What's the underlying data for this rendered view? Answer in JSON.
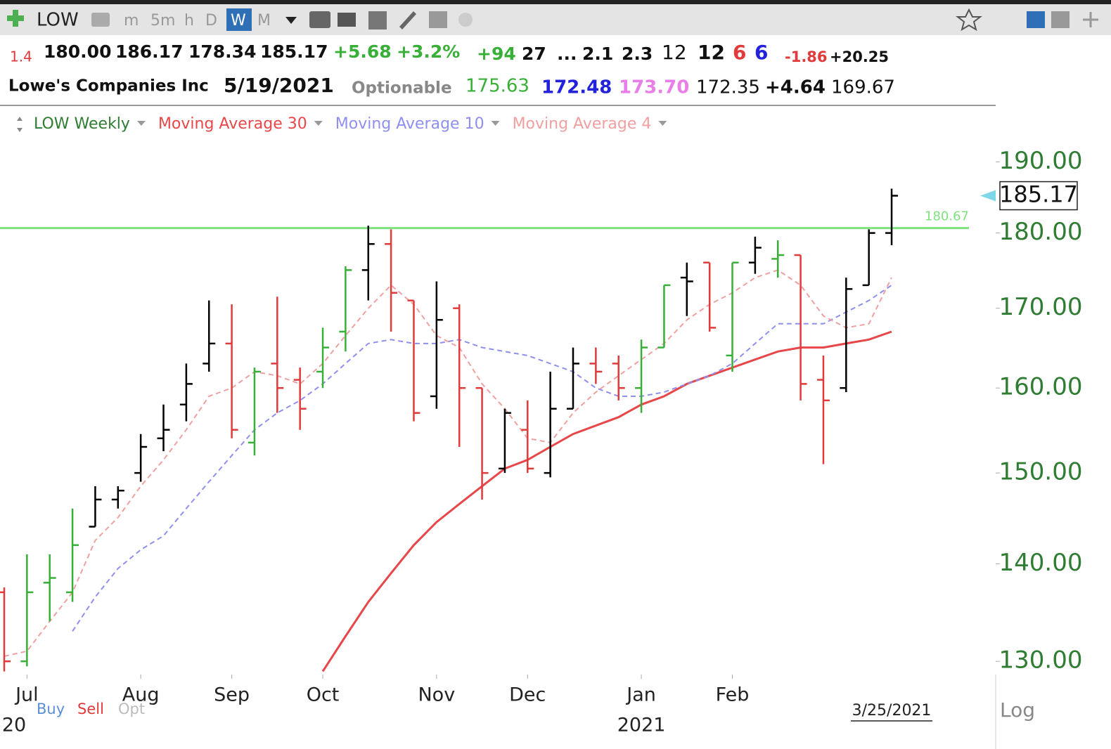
{
  "header": {
    "symbol": "LOW",
    "timeframes": [
      "m",
      "5m",
      "h",
      "D",
      "W",
      "M"
    ],
    "quote": [
      "1.4",
      "180.00",
      "186.17",
      "178.34",
      "185.17",
      "+5.68",
      "+3.2%",
      "+94",
      "27",
      "...",
      "2.1",
      "2.3",
      "12",
      "12",
      "6",
      "6",
      "-1.86",
      "+20.25"
    ],
    "info": [
      "Lowe's Companies Inc",
      "5/19/2021",
      "Optionable",
      "175.63",
      "172.48",
      "173.70",
      "172.35",
      "+4.64",
      "169.67"
    ]
  },
  "chart_data": {
    "type": "ohlc",
    "log": true,
    "ylim": [
      128.7,
      193.1
    ],
    "yticks": [
      {
        "value": 130,
        "label": "130.00"
      },
      {
        "value": 140,
        "label": "140.00"
      },
      {
        "value": 150,
        "label": "150.00"
      },
      {
        "value": 160,
        "label": "160.00"
      },
      {
        "value": 170,
        "label": "170.00"
      },
      {
        "value": 180,
        "label": "180.00"
      },
      {
        "value": 190,
        "label": "190.00"
      }
    ],
    "xticks": [
      {
        "value": 1,
        "label": "Jul"
      },
      {
        "value": 6,
        "label": "Aug"
      },
      {
        "value": 10,
        "label": "Sep"
      },
      {
        "value": 14,
        "label": "Oct"
      },
      {
        "value": 19,
        "label": "Nov"
      },
      {
        "value": 23,
        "label": "Dec"
      },
      {
        "value": 28,
        "label": "Jan"
      },
      {
        "value": 32,
        "label": "Feb"
      }
    ],
    "year_labels": [
      {
        "value": 0,
        "label": "20"
      },
      {
        "value": 28,
        "label": "2021"
      }
    ],
    "cursor": {
      "value": 39,
      "label": "3/25/2021"
    },
    "hline": {
      "value": 180.67,
      "label": "180.67",
      "color": "#7ee37e"
    },
    "last_price": {
      "value": 185.17,
      "label": "185.17"
    },
    "series": [
      {
        "name": "LOW Weekly",
        "color": "#2e7d32",
        "open": [
          137,
          130,
          138,
          137,
          144,
          147,
          150,
          154,
          158,
          163,
          165.5,
          153.5,
          163,
          161,
          162,
          167,
          175,
          178.5,
          171,
          159,
          170,
          160,
          150.5,
          155,
          150,
          157.5,
          163,
          163,
          160,
          165,
          174,
          176,
          164,
          176,
          176.5,
          177,
          161,
          160,
          173,
          180.0
        ],
        "high": [
          137.5,
          141,
          141,
          146,
          148.5,
          148.5,
          154.5,
          158,
          163,
          171,
          170.5,
          162.5,
          171.5,
          162.5,
          167.5,
          175.5,
          181,
          180.5,
          171,
          173.5,
          170.5,
          160,
          157.5,
          158.5,
          162,
          165,
          165,
          164,
          166,
          173,
          176,
          176,
          176,
          179.5,
          179,
          177,
          164,
          174,
          180.5,
          186.17
        ],
        "low": [
          129,
          129.5,
          134,
          136,
          144,
          146,
          149,
          152.5,
          156,
          162,
          154,
          152,
          157,
          155,
          160,
          164.5,
          171,
          167,
          156,
          157.5,
          153,
          147,
          150,
          150,
          149.5,
          157.5,
          160.5,
          158.5,
          157,
          165,
          169,
          167,
          162,
          174.5,
          174,
          158.5,
          151,
          159.5,
          173,
          178.34
        ],
        "close": [
          130,
          137,
          138.5,
          142,
          147,
          148,
          153,
          155,
          160.5,
          165.5,
          155,
          162,
          160,
          157.5,
          165,
          175,
          178.5,
          172,
          157,
          168.5,
          160,
          150,
          157,
          150.5,
          157.5,
          163,
          162,
          160,
          165,
          173,
          173.5,
          167.5,
          176,
          178,
          177,
          160.5,
          158.5,
          172.5,
          180,
          185.17
        ],
        "bar_colors": [
          "#e03a3a",
          "#38b038",
          "#38b038",
          "#38b038",
          "#000000",
          "#000000",
          "#000000",
          "#000000",
          "#000000",
          "#000000",
          "#e03a3a",
          "#38b038",
          "#e03a3a",
          "#e03a3a",
          "#38b038",
          "#38b038",
          "#000000",
          "#e03a3a",
          "#e03a3a",
          "#000000",
          "#e03a3a",
          "#e03a3a",
          "#000000",
          "#e03a3a",
          "#000000",
          "#000000",
          "#e03a3a",
          "#e03a3a",
          "#38b038",
          "#38b038",
          "#000000",
          "#e03a3a",
          "#38b038",
          "#000000",
          "#38b038",
          "#e03a3a",
          "#e03a3a",
          "#000000",
          "#000000",
          "#000000"
        ]
      },
      {
        "name": "Moving Average 30",
        "color": "#e8474a",
        "dash": false,
        "values": [
          null,
          null,
          null,
          null,
          null,
          null,
          null,
          null,
          null,
          null,
          null,
          null,
          null,
          null,
          129,
          132.5,
          136,
          139,
          142,
          144.5,
          146.5,
          148.5,
          150.5,
          151.5,
          153,
          154.5,
          155.5,
          156.5,
          158,
          159,
          160.5,
          161.5,
          162.5,
          163.5,
          164.5,
          165,
          165,
          165.5,
          166,
          167
        ]
      },
      {
        "name": "Moving Average 10",
        "color": "#8f8ff0",
        "dash": true,
        "values": [
          null,
          null,
          null,
          133,
          136.5,
          139.5,
          141.5,
          143,
          146,
          149,
          152,
          155,
          157,
          158.5,
          160.5,
          163,
          165.5,
          166,
          165.5,
          165.5,
          166,
          165,
          164.5,
          164,
          163,
          162,
          160,
          159,
          159,
          159.5,
          160.5,
          161.5,
          163,
          165.5,
          168,
          168,
          168,
          169.5,
          171,
          173
        ]
      },
      {
        "name": "Moving Average 4",
        "color": "#f0a0a0",
        "dash": true,
        "values": [
          130.5,
          131,
          134,
          137,
          142.5,
          145,
          148.5,
          151.5,
          155,
          159,
          160,
          162,
          161.5,
          160.5,
          163,
          166.5,
          170,
          173,
          170.5,
          166.5,
          165,
          160.5,
          157.5,
          154,
          153.5,
          157,
          159.5,
          161.5,
          163.5,
          165.5,
          168.5,
          170.5,
          172,
          174,
          175,
          173,
          169,
          167.5,
          168,
          174
        ]
      }
    ]
  },
  "footer": {
    "buttons": [
      "Buy",
      "Sell",
      "Opt"
    ],
    "scale": "Log"
  }
}
